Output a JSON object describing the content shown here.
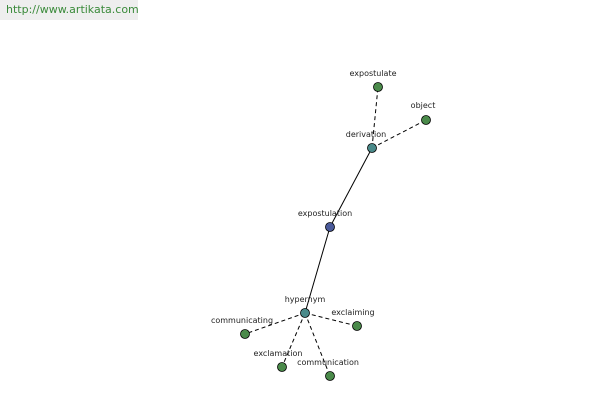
{
  "header": {
    "url": "http://www.artikata.com"
  },
  "nodes": [
    {
      "label": "expostulation"
    },
    {
      "label": "derivation"
    },
    {
      "label": "hypernym"
    },
    {
      "label": "expostulate"
    },
    {
      "label": "object"
    },
    {
      "label": "communicating"
    },
    {
      "label": "exclamation"
    },
    {
      "label": "communication"
    },
    {
      "label": "exclaiming"
    }
  ]
}
